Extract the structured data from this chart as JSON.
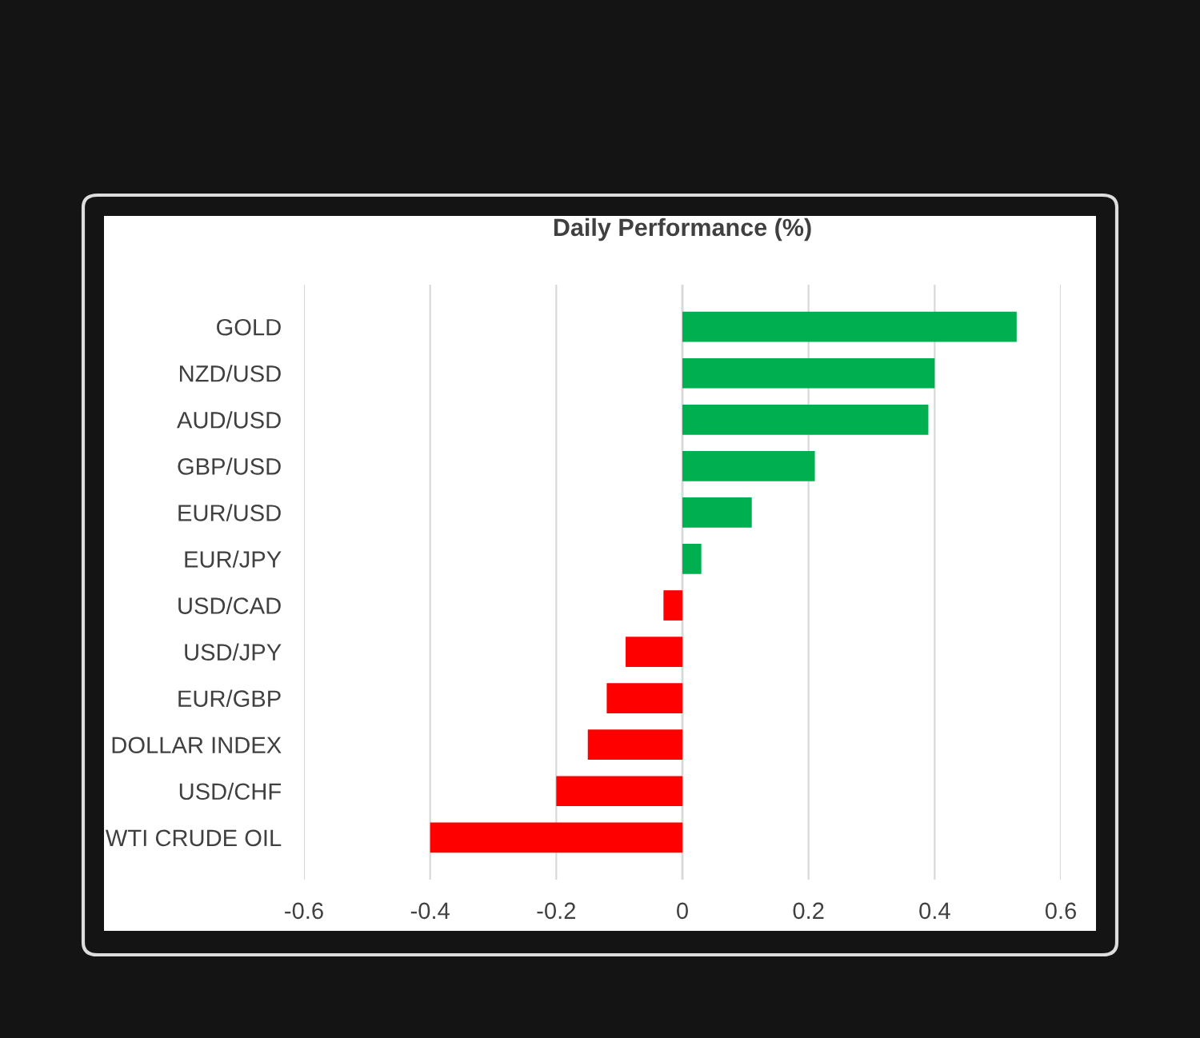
{
  "chart_data": {
    "type": "bar",
    "orientation": "horizontal",
    "title": "Daily Performance (%)",
    "categories": [
      "GOLD",
      "NZD/USD",
      "AUD/USD",
      "GBP/USD",
      "EUR/USD",
      "EUR/JPY",
      "USD/CAD",
      "USD/JPY",
      "EUR/GBP",
      "DOLLAR INDEX",
      "USD/CHF",
      "WTI CRUDE OIL"
    ],
    "values": [
      0.53,
      0.4,
      0.39,
      0.21,
      0.11,
      0.03,
      -0.03,
      -0.09,
      -0.12,
      -0.15,
      -0.2,
      -0.4
    ],
    "colors": [
      "#00b050",
      "#00b050",
      "#00b050",
      "#00b050",
      "#00b050",
      "#00b050",
      "#ff0000",
      "#ff0000",
      "#ff0000",
      "#ff0000",
      "#ff0000",
      "#ff0000"
    ],
    "xlim": [
      -0.6,
      0.6
    ],
    "xticks": [
      -0.6,
      -0.4,
      -0.2,
      0,
      0.2,
      0.4,
      0.6
    ],
    "grid": "x",
    "legend": false
  }
}
